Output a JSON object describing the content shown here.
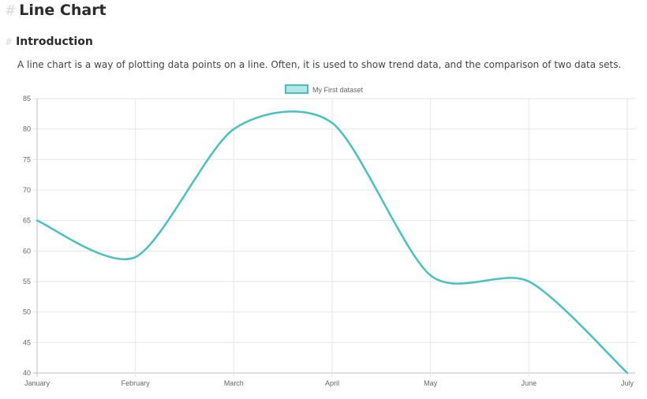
{
  "page": {
    "anchor_symbol": "#",
    "title": "Line Chart",
    "section_heading": "Introduction",
    "intro_text": "A line chart is a way of plotting data points on a line. Often, it is used to show trend data, and the comparison of two data sets."
  },
  "chart_data": {
    "type": "line",
    "categories": [
      "January",
      "February",
      "March",
      "April",
      "May",
      "June",
      "July"
    ],
    "series": [
      {
        "name": "My First dataset",
        "values": [
          65,
          59,
          80,
          81,
          56,
          55,
          40
        ],
        "color": "#4bc0c0",
        "fill": "#b3e6e6"
      }
    ],
    "ylim": [
      40,
      85
    ],
    "yticks": [
      40,
      45,
      50,
      55,
      60,
      65,
      70,
      75,
      80,
      85
    ],
    "legend_position": "top-center",
    "grid": true,
    "grid_color": "#e6e6e6",
    "axis_color": "#bfbfbf"
  }
}
